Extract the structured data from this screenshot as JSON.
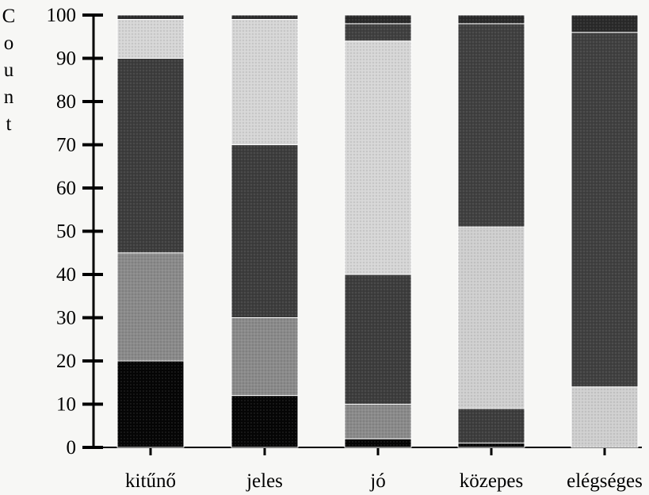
{
  "chart_data": {
    "type": "bar",
    "stacked": true,
    "ylabel": "Count",
    "xlabel": "",
    "title": "",
    "ylim": [
      0,
      100
    ],
    "yticks": [
      "0",
      "10",
      "20",
      "30",
      "40",
      "50",
      "60",
      "70",
      "80",
      "90",
      "100"
    ],
    "categories": [
      "kitűnő",
      "jeles",
      "jó",
      "közepes",
      "elégséges"
    ],
    "series": [
      {
        "values": [
          20,
          12,
          2,
          1,
          0
        ],
        "fill": "#050505"
      },
      {
        "values": [
          25,
          18,
          8,
          0,
          0
        ],
        "fill": "#8a8a8a"
      },
      {
        "values": [
          45,
          40,
          30,
          8,
          0
        ],
        "fill": "#3d3d3d"
      },
      {
        "values": [
          0,
          0,
          0,
          42,
          14
        ],
        "fill": "#cfcfcf"
      },
      {
        "values": [
          9,
          29,
          54,
          0,
          0
        ],
        "fill": "#d6d6d6"
      },
      {
        "values": [
          0,
          0,
          4,
          47,
          82
        ],
        "fill": "#404040"
      },
      {
        "values": [
          1,
          1,
          2,
          2,
          4
        ],
        "fill": "#2a2a2a"
      }
    ],
    "grid": false,
    "legend": "none"
  }
}
